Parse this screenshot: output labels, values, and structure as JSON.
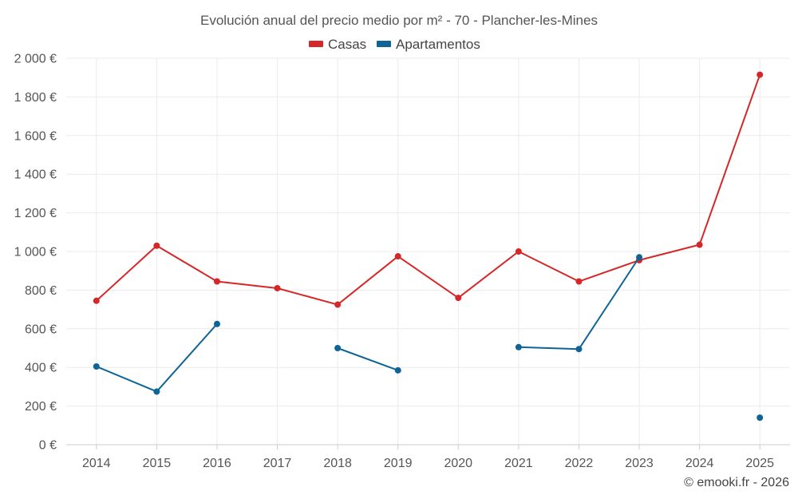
{
  "chart_data": {
    "type": "line",
    "title": "Evolución anual del precio medio por m² - 70 - Plancher-les-Mines",
    "categories": [
      "2014",
      "2015",
      "2016",
      "2017",
      "2018",
      "2019",
      "2020",
      "2021",
      "2022",
      "2023",
      "2024",
      "2025"
    ],
    "y_ticks": [
      0,
      200,
      400,
      600,
      800,
      1000,
      1200,
      1400,
      1600,
      1800,
      2000
    ],
    "y_tick_labels": [
      "0 €",
      "200 €",
      "400 €",
      "600 €",
      "800 €",
      "1 000 €",
      "1 200 €",
      "1 400 €",
      "1 600 €",
      "1 800 €",
      "2 000 €"
    ],
    "ylim": [
      0,
      2000
    ],
    "grid": true,
    "legend_position": "top-center",
    "series": [
      {
        "name": "Casas",
        "color": "#d62728",
        "values": [
          745,
          1030,
          845,
          810,
          725,
          975,
          760,
          1000,
          845,
          955,
          1035,
          1915
        ]
      },
      {
        "name": "Apartamentos",
        "color": "#0f6496",
        "values": [
          405,
          275,
          625,
          null,
          500,
          385,
          null,
          505,
          495,
          970,
          null,
          140
        ]
      }
    ],
    "credit": "© emooki.fr - 2026"
  }
}
